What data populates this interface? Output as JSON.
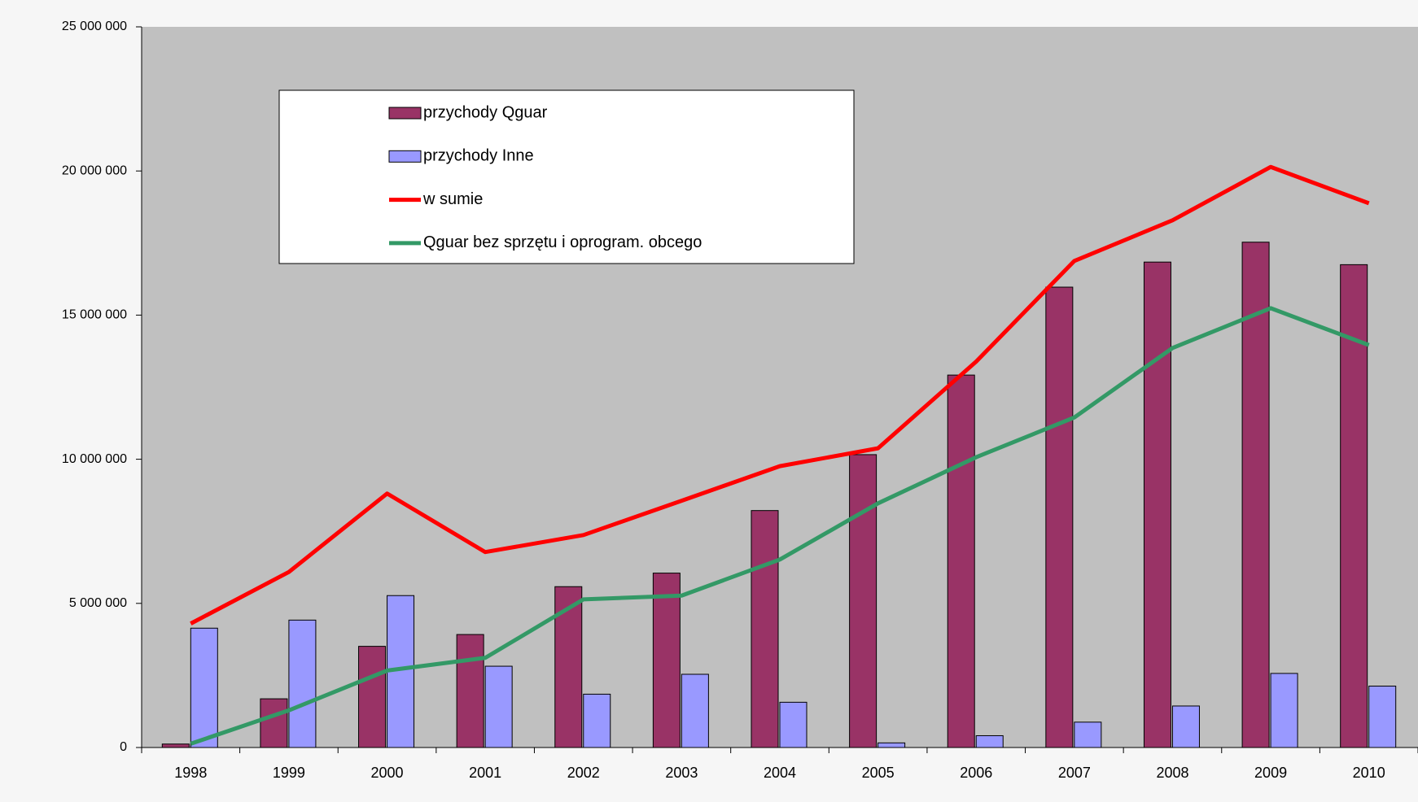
{
  "chart_data": {
    "type": "bar",
    "categories": [
      "1998",
      "1999",
      "2000",
      "2001",
      "2002",
      "2003",
      "2004",
      "2005",
      "2006",
      "2007",
      "2008",
      "2009",
      "2010"
    ],
    "series": [
      {
        "name": "przychody Qguar",
        "type": "bar",
        "color": "#993366",
        "values": [
          120000,
          1690000,
          3510000,
          3920000,
          5580000,
          6050000,
          8220000,
          10160000,
          12920000,
          15970000,
          16840000,
          17530000,
          16750000
        ]
      },
      {
        "name": "przychody Inne",
        "type": "bar",
        "color": "#9999ff",
        "values": [
          4140000,
          4420000,
          5270000,
          2820000,
          1850000,
          2540000,
          1570000,
          160000,
          410000,
          880000,
          1440000,
          2570000,
          2130000
        ]
      },
      {
        "name": "w sumie",
        "type": "line",
        "color": "#ff0000",
        "values": [
          4300000,
          6090000,
          8810000,
          6780000,
          7370000,
          8560000,
          9760000,
          10380000,
          13390000,
          16880000,
          18290000,
          20140000,
          18880000
        ]
      },
      {
        "name": "Qguar bez sprzętu i oprogram. obcego",
        "type": "line",
        "color": "#339966",
        "values": [
          130000,
          1290000,
          2670000,
          3110000,
          5140000,
          5270000,
          6520000,
          8470000,
          10070000,
          11450000,
          13860000,
          15240000,
          13960000
        ]
      }
    ],
    "ylim": [
      0,
      25000000
    ],
    "yticks": [
      0,
      {
        "value": 5000000,
        "label": "5 000 000"
      },
      {
        "value": 10000000,
        "label": "10 000 000"
      },
      {
        "value": 15000000,
        "label": "15 000 000"
      },
      {
        "value": 20000000,
        "label": "20 000 000"
      },
      {
        "value": 25000000,
        "label": "25 000 000"
      }
    ],
    "plot_background": "#c0c0c0"
  }
}
